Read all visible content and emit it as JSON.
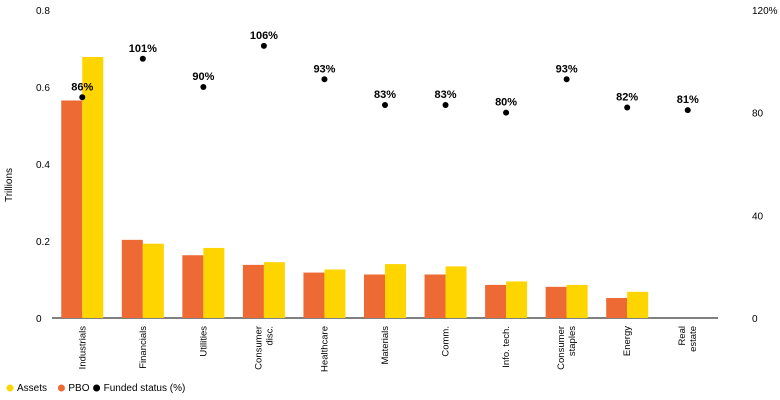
{
  "chart_data": {
    "type": "bar",
    "categories": [
      "Industrials",
      "Financials",
      "Utilities",
      "Consumer disc.",
      "Healthcare",
      "Materials",
      "Comm.",
      "Info. tech.",
      "Consumer staples",
      "Energy",
      "Real estate"
    ],
    "category_lines": [
      [
        "Industrials"
      ],
      [
        "Financials"
      ],
      [
        "Utilities"
      ],
      [
        "Consumer",
        "disc."
      ],
      [
        "Healthcare"
      ],
      [
        "Materials"
      ],
      [
        "Comm."
      ],
      [
        "Info. tech."
      ],
      [
        "Consumer",
        "staples"
      ],
      [
        "Energy"
      ],
      [
        "Real",
        "estate"
      ]
    ],
    "series": [
      {
        "name": "PBO",
        "axis": "left",
        "color": "#EE6A35",
        "values": [
          0.565,
          0.203,
          0.163,
          0.138,
          0.118,
          0.113,
          0.113,
          0.086,
          0.081,
          0.052,
          null
        ]
      },
      {
        "name": "Assets",
        "axis": "left",
        "color": "#FFD500",
        "values": [
          0.678,
          0.193,
          0.182,
          0.145,
          0.126,
          0.14,
          0.134,
          0.095,
          0.086,
          0.068,
          null
        ]
      },
      {
        "name": "Funded status (%)",
        "axis": "right",
        "type": "scatter",
        "color": "#000000",
        "values": [
          86,
          101,
          90,
          106,
          93,
          83,
          83,
          80,
          93,
          82,
          81
        ]
      }
    ],
    "point_labels": [
      "86%",
      "101%",
      "90%",
      "106%",
      "93%",
      "83%",
      "83%",
      "80%",
      "93%",
      "82%",
      "81%"
    ],
    "ylabel": "Trillions",
    "ylim": [
      0,
      0.8
    ],
    "yticks": [
      "0",
      "0.2",
      "0.4",
      "0.6",
      "0.8"
    ],
    "ylim_right": [
      0,
      120
    ],
    "yticks_right": [
      "0",
      "40",
      "80",
      "120%"
    ],
    "grid": false,
    "legend": {
      "position": "bottom-left",
      "entries": [
        "Assets",
        "PBO",
        "Funded status (%)"
      ]
    }
  }
}
